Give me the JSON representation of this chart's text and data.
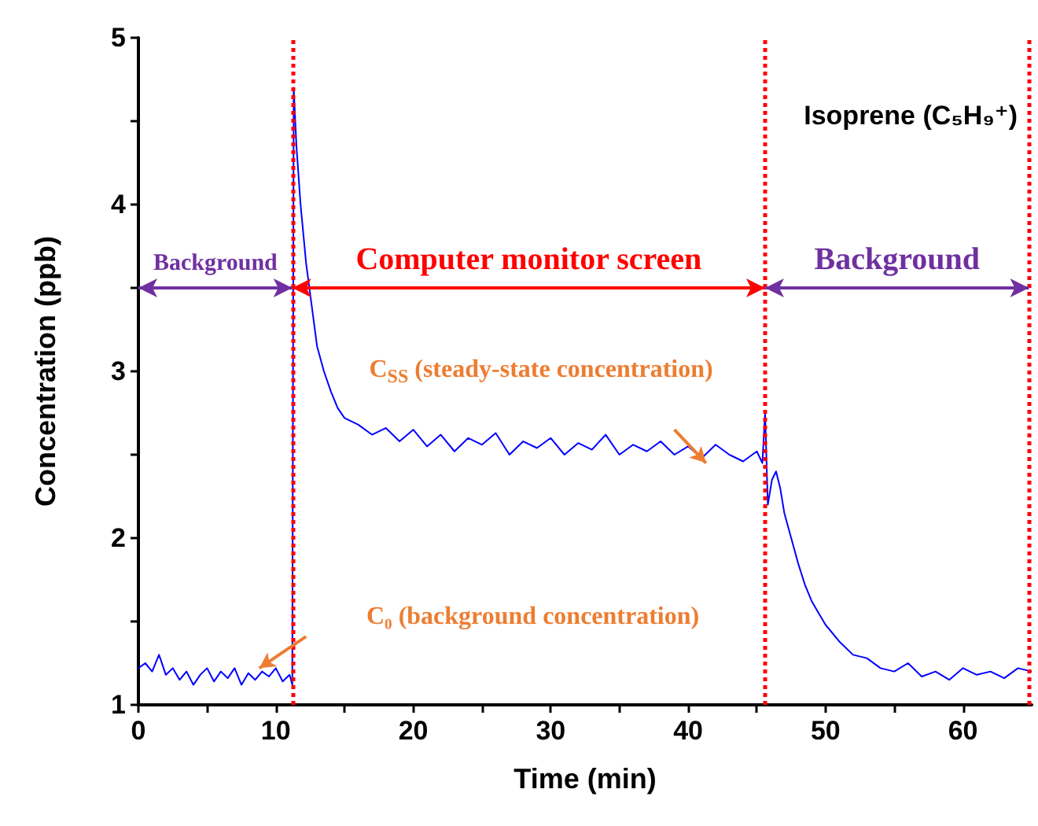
{
  "chart_data": {
    "type": "line",
    "title": "Isoprene (C₅H₉⁺)",
    "xlabel": "Time (min)",
    "ylabel": "Concentration (ppb)",
    "x": [
      0,
      0.5,
      1,
      1.5,
      2,
      2.5,
      3,
      3.5,
      4,
      4.5,
      5,
      5.5,
      6,
      6.5,
      7,
      7.5,
      8,
      8.5,
      9,
      9.5,
      10,
      10.5,
      11,
      11.2,
      11.3,
      11.5,
      11.8,
      12.2,
      12.6,
      13,
      13.5,
      14,
      14.5,
      15,
      16,
      17,
      18,
      19,
      20,
      21,
      22,
      23,
      24,
      25,
      26,
      27,
      28,
      29,
      30,
      31,
      32,
      33,
      34,
      35,
      36,
      37,
      38,
      39,
      40,
      41,
      42,
      43,
      44,
      45,
      45.4,
      45.6,
      45.8,
      46.1,
      46.4,
      46.7,
      47,
      47.5,
      48,
      48.5,
      49,
      49.5,
      50,
      51,
      52,
      53,
      54,
      55,
      56,
      57,
      58,
      59,
      60,
      61,
      62,
      63,
      64,
      65
    ],
    "series": [
      {
        "color": "#0000ff",
        "values": [
          1.22,
          1.25,
          1.2,
          1.3,
          1.18,
          1.22,
          1.15,
          1.2,
          1.12,
          1.18,
          1.22,
          1.14,
          1.2,
          1.16,
          1.22,
          1.12,
          1.19,
          1.15,
          1.2,
          1.17,
          1.22,
          1.14,
          1.18,
          1.12,
          4.7,
          4.35,
          4.0,
          3.65,
          3.4,
          3.15,
          3.0,
          2.88,
          2.78,
          2.72,
          2.68,
          2.62,
          2.66,
          2.58,
          2.65,
          2.55,
          2.62,
          2.52,
          2.6,
          2.56,
          2.63,
          2.5,
          2.58,
          2.54,
          2.6,
          2.5,
          2.57,
          2.53,
          2.62,
          2.5,
          2.56,
          2.52,
          2.58,
          2.5,
          2.55,
          2.48,
          2.56,
          2.5,
          2.46,
          2.52,
          2.45,
          2.75,
          2.2,
          2.35,
          2.4,
          2.3,
          2.15,
          2.0,
          1.85,
          1.72,
          1.62,
          1.55,
          1.48,
          1.38,
          1.3,
          1.28,
          1.22,
          1.2,
          1.25,
          1.17,
          1.2,
          1.15,
          1.22,
          1.18,
          1.2,
          1.16,
          1.22,
          1.2
        ]
      }
    ],
    "xlim": [
      0,
      65
    ],
    "xticks": [
      0,
      {
        "value": 5,
        "label": null
      },
      10,
      {
        "value": 15,
        "label": null
      },
      20,
      {
        "value": 25,
        "label": null
      },
      30,
      {
        "value": 35,
        "label": null
      },
      40,
      {
        "value": 45,
        "label": null
      },
      50,
      {
        "value": 55,
        "label": null
      },
      60
    ],
    "ylim": [
      1,
      5
    ],
    "yticks": [
      1,
      {
        "value": 1.5,
        "label": null
      },
      2,
      {
        "value": 2.5,
        "label": null
      },
      3,
      {
        "value": 3.5,
        "label": null
      },
      4,
      {
        "value": 4.5,
        "label": null
      },
      5
    ],
    "marker": "none",
    "ref_lines": [
      {
        "axis": "x",
        "value": 11.2,
        "color": "#ff0000",
        "line_style": "dotted"
      },
      {
        "axis": "x",
        "value": 45.6,
        "color": "#ff0000",
        "line_style": "dotted"
      },
      {
        "axis": "x",
        "value": 64.8,
        "color": "#ff0000",
        "line_style": "dotted"
      }
    ],
    "annotations": [
      "Background",
      "Computer monitor screen",
      "Background",
      "C$_{SS}$ (steady-state concentration)",
      "C₀ (background concentration)"
    ]
  }
}
